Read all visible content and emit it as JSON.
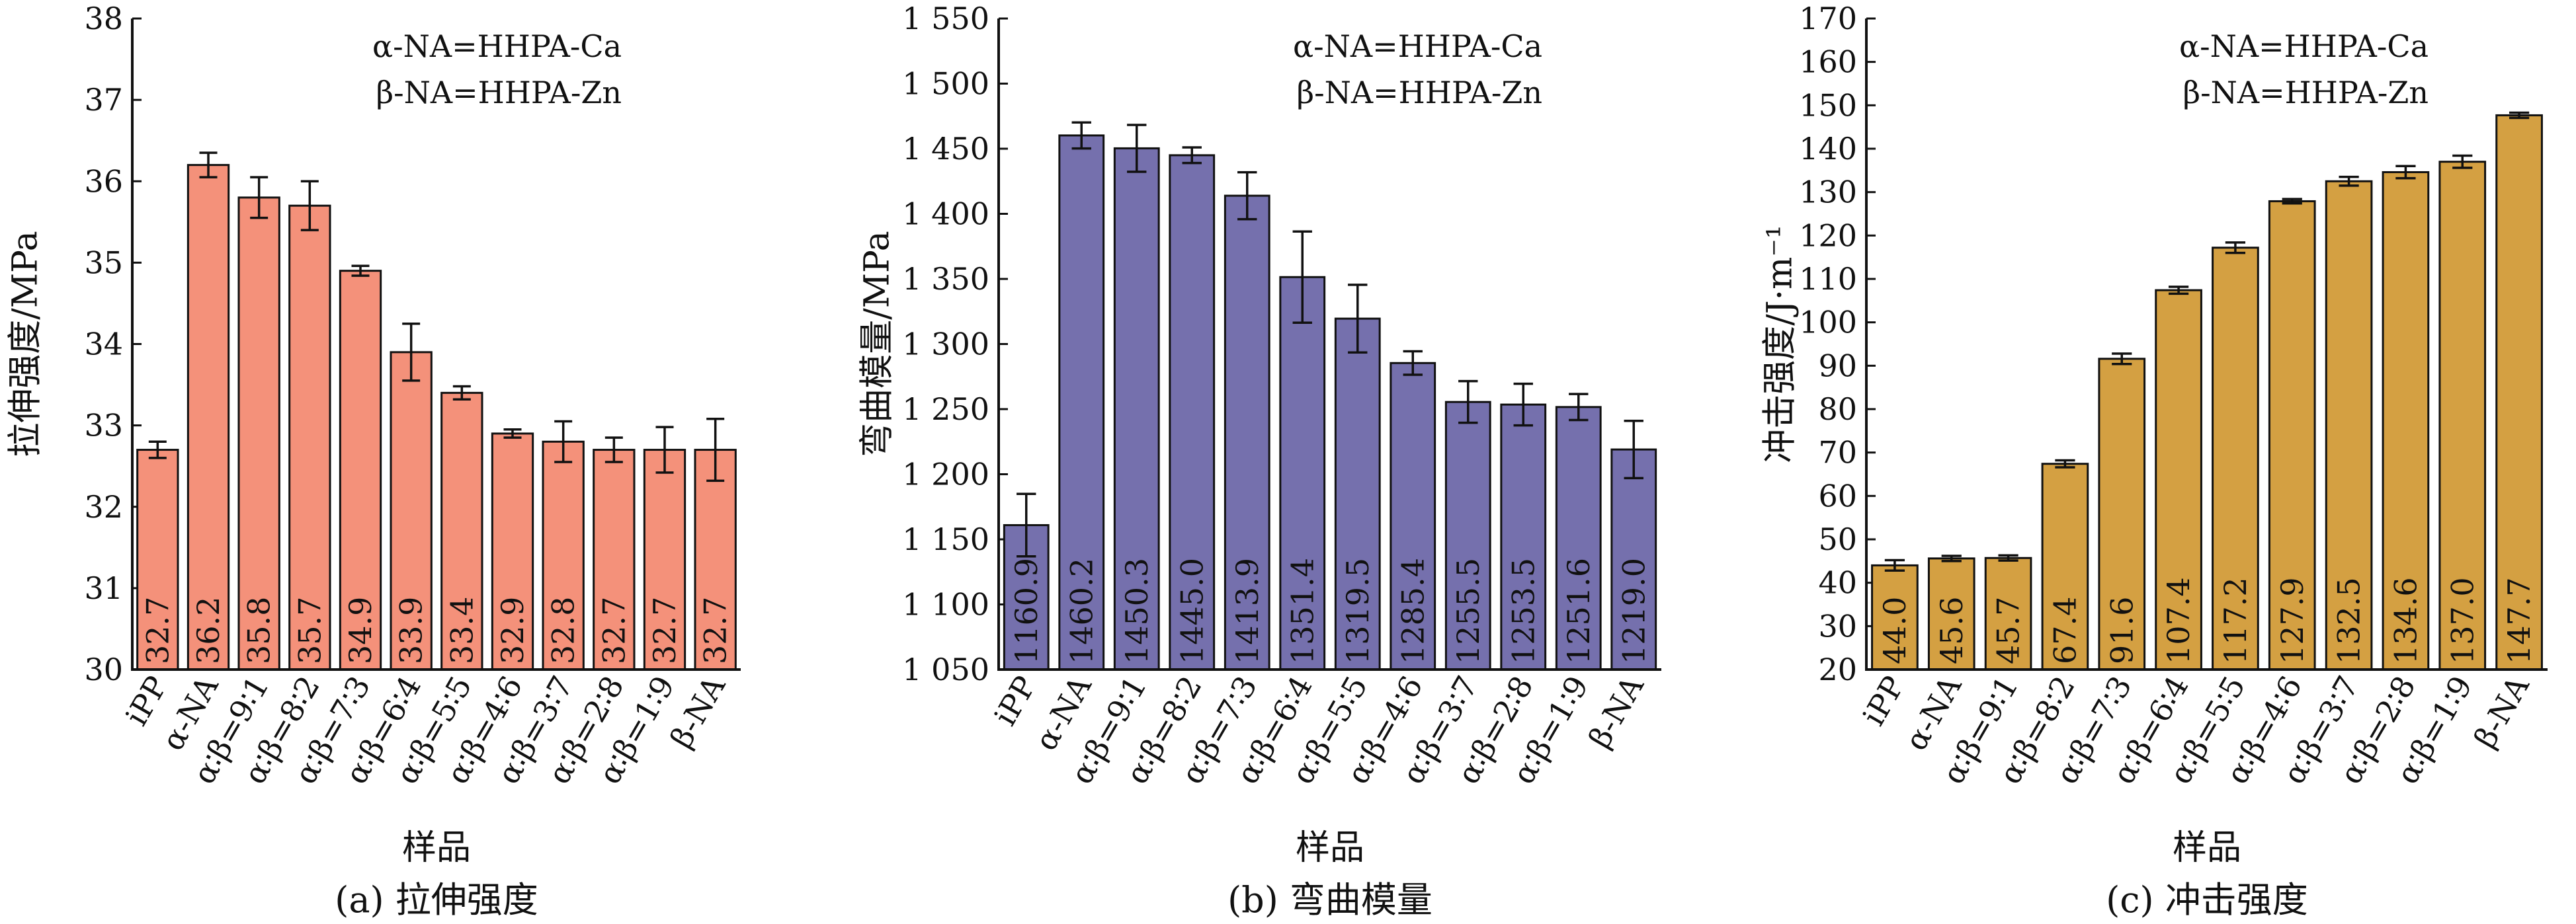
{
  "chart_data": [
    {
      "type": "bar",
      "caption": "(a) 拉伸强度",
      "xlabel": "样品",
      "ylabel": "拉伸强度/MPa",
      "ylim": [
        30,
        38
      ],
      "yticks": [
        30,
        31,
        32,
        33,
        34,
        35,
        36,
        37,
        38
      ],
      "ytick_labels": [
        "30",
        "31",
        "32",
        "33",
        "34",
        "35",
        "36",
        "37",
        "38"
      ],
      "annotations": [
        "α-NA=HHPA-Ca",
        "β-NA=HHPA-Zn"
      ],
      "categories": [
        "iPP",
        "α-NA",
        "α∶β=9∶1",
        "α∶β=8∶2",
        "α∶β=7∶3",
        "α∶β=6∶4",
        "α∶β=5∶5",
        "α∶β=4∶6",
        "α∶β=3∶7",
        "α∶β=2∶8",
        "α∶β=1∶9",
        "β-NA"
      ],
      "values": [
        32.7,
        36.2,
        35.8,
        35.7,
        34.9,
        33.9,
        33.4,
        32.9,
        32.8,
        32.7,
        32.7,
        32.7
      ],
      "value_labels": [
        "32.7",
        "36.2",
        "35.8",
        "35.7",
        "34.9",
        "33.9",
        "33.4",
        "32.9",
        "32.8",
        "32.7",
        "32.7",
        "32.7"
      ],
      "errors": [
        0.1,
        0.15,
        0.25,
        0.3,
        0.06,
        0.35,
        0.08,
        0.05,
        0.25,
        0.15,
        0.28,
        0.38
      ],
      "color": "#F4917A"
    },
    {
      "type": "bar",
      "caption": "(b) 弯曲模量",
      "xlabel": "样品",
      "ylabel": "弯曲模量/MPa",
      "ylim": [
        1050,
        1550
      ],
      "yticks": [
        1050,
        1100,
        1150,
        1200,
        1250,
        1300,
        1350,
        1400,
        1450,
        1500,
        1550
      ],
      "ytick_labels": [
        "1 050",
        "1 100",
        "1 150",
        "1 200",
        "1 250",
        "1 300",
        "1 350",
        "1 400",
        "1 450",
        "1 500",
        "1 550"
      ],
      "annotations": [
        "α-NA=HHPA-Ca",
        "β-NA=HHPA-Zn"
      ],
      "categories": [
        "iPP",
        "α-NA",
        "α∶β=9∶1",
        "α∶β=8∶2",
        "α∶β=7∶3",
        "α∶β=6∶4",
        "α∶β=5∶5",
        "α∶β=4∶6",
        "α∶β=3∶7",
        "α∶β=2∶8",
        "α∶β=1∶9",
        "β-NA"
      ],
      "values": [
        1160.9,
        1460.2,
        1450.3,
        1445.0,
        1413.9,
        1351.4,
        1319.5,
        1285.4,
        1255.5,
        1253.5,
        1251.6,
        1219.0
      ],
      "value_labels": [
        "1160.9",
        "1460.2",
        "1450.3",
        "1445.0",
        "1413.9",
        "1351.4",
        "1319.5",
        "1285.4",
        "1255.5",
        "1253.5",
        "1251.6",
        "1219.0"
      ],
      "errors": [
        24,
        10,
        18,
        6,
        18,
        35,
        26,
        9,
        16,
        16,
        10,
        22
      ],
      "color": "#7570AD"
    },
    {
      "type": "bar",
      "caption": "(c) 冲击强度",
      "xlabel": "样品",
      "ylabel": "冲击强度/J·m⁻¹",
      "ylim": [
        20,
        170
      ],
      "yticks": [
        20,
        30,
        40,
        50,
        60,
        70,
        80,
        90,
        100,
        110,
        120,
        130,
        140,
        150,
        160,
        170
      ],
      "ytick_labels": [
        "20",
        "30",
        "40",
        "50",
        "60",
        "70",
        "80",
        "90",
        "100",
        "110",
        "120",
        "130",
        "140",
        "150",
        "160",
        "170"
      ],
      "annotations": [
        "α-NA=HHPA-Ca",
        "β-NA=HHPA-Zn"
      ],
      "categories": [
        "iPP",
        "α-NA",
        "α∶β=9∶1",
        "α∶β=8∶2",
        "α∶β=7∶3",
        "α∶β=6∶4",
        "α∶β=5∶5",
        "α∶β=4∶6",
        "α∶β=3∶7",
        "α∶β=2∶8",
        "α∶β=1∶9",
        "β-NA"
      ],
      "values": [
        44.0,
        45.6,
        45.7,
        67.4,
        91.6,
        107.4,
        117.2,
        127.9,
        132.5,
        134.6,
        137.0,
        147.7
      ],
      "value_labels": [
        "44.0",
        "45.6",
        "45.7",
        "67.4",
        "91.6",
        "107.4",
        "117.2",
        "127.9",
        "132.5",
        "134.6",
        "137.0",
        "147.7"
      ],
      "errors": [
        1.2,
        0.6,
        0.6,
        0.8,
        1.2,
        0.8,
        1.2,
        0.5,
        1.0,
        1.4,
        1.4,
        0.6
      ],
      "color": "#D4A042"
    }
  ]
}
